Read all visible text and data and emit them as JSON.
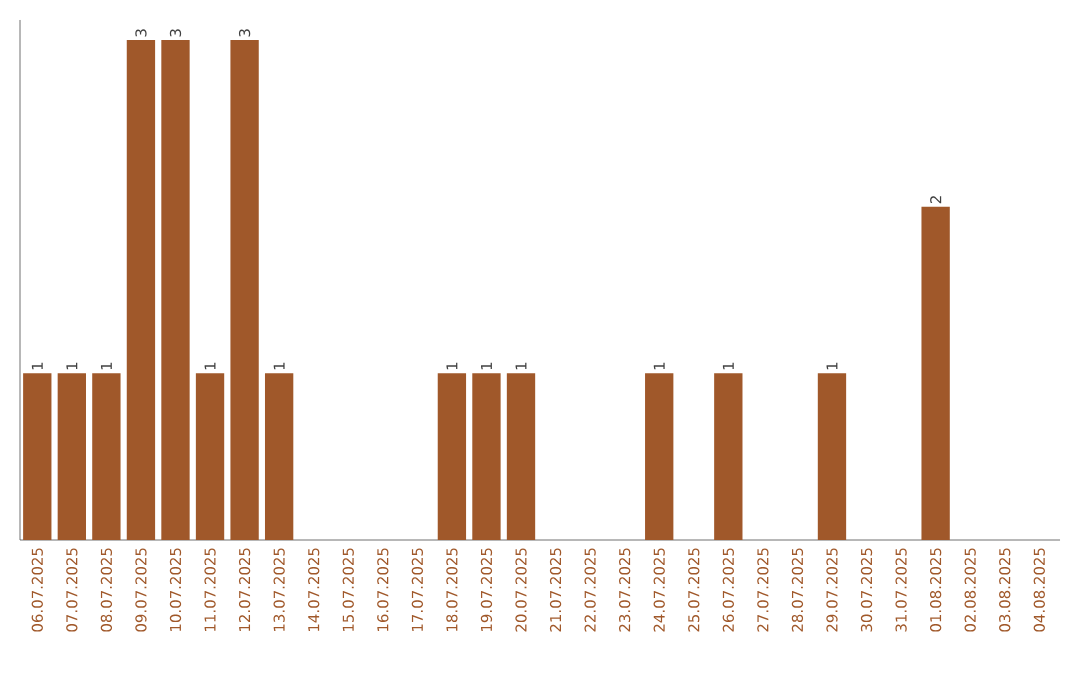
{
  "chart_data": {
    "type": "bar",
    "categories": [
      "06.07.2025",
      "07.07.2025",
      "08.07.2025",
      "09.07.2025",
      "10.07.2025",
      "11.07.2025",
      "12.07.2025",
      "13.07.2025",
      "14.07.2025",
      "15.07.2025",
      "16.07.2025",
      "17.07.2025",
      "18.07.2025",
      "19.07.2025",
      "20.07.2025",
      "21.07.2025",
      "22.07.2025",
      "23.07.2025",
      "24.07.2025",
      "25.07.2025",
      "26.07.2025",
      "27.07.2025",
      "28.07.2025",
      "29.07.2025",
      "30.07.2025",
      "31.07.2025",
      "01.08.2025",
      "02.08.2025",
      "03.08.2025",
      "04.08.2025"
    ],
    "values": [
      1,
      1,
      1,
      3,
      3,
      1,
      3,
      1,
      0,
      0,
      0,
      0,
      1,
      1,
      1,
      0,
      0,
      0,
      1,
      0,
      1,
      0,
      0,
      1,
      0,
      0,
      2,
      0,
      0,
      0
    ],
    "value_labels": [
      "1",
      "1",
      "1",
      "3",
      "3",
      "1",
      "3",
      "1",
      null,
      null,
      null,
      null,
      "1",
      "1",
      "1",
      null,
      null,
      null,
      "1",
      null,
      "1",
      null,
      null,
      "1",
      null,
      null,
      "2",
      null,
      null,
      null
    ],
    "color": "#a0582a",
    "grid": false
  }
}
